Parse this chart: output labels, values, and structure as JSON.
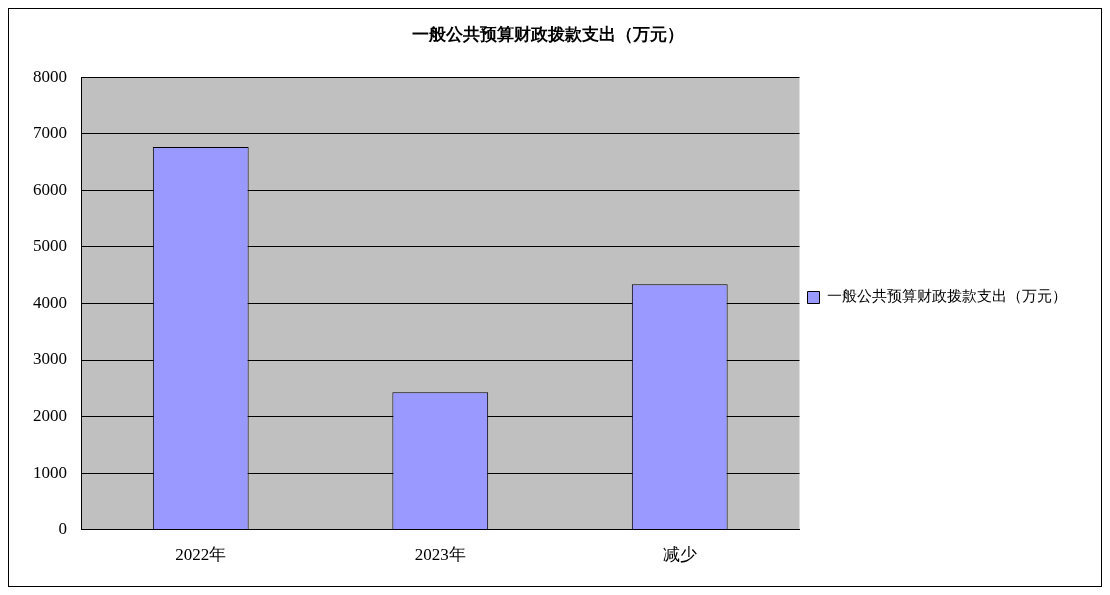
{
  "chart_data": {
    "type": "bar",
    "title": "一般公共预算财政拨款支出（万元）",
    "categories": [
      "2022年",
      "2023年",
      "减少"
    ],
    "series": [
      {
        "name": "一般公共预算财政拨款支出（万元）",
        "color": "#9999ff",
        "values": [
          6770,
          2430,
          4340
        ]
      }
    ],
    "ylim": [
      0,
      8000
    ],
    "yticks": [
      0,
      1000,
      2000,
      3000,
      4000,
      5000,
      6000,
      7000,
      8000
    ],
    "grid": "y",
    "legend": "right"
  }
}
